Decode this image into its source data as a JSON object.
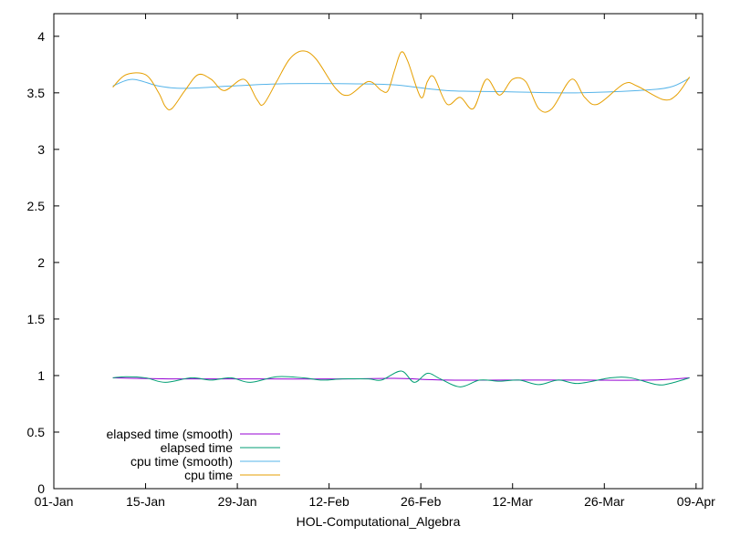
{
  "chart_data": {
    "type": "line",
    "title": "",
    "xlabel": "HOL-Computational_Algebra",
    "ylabel": "",
    "x_ticks": [
      "01-Jan",
      "15-Jan",
      "29-Jan",
      "12-Feb",
      "26-Feb",
      "12-Mar",
      "26-Mar",
      "09-Apr"
    ],
    "y_ticks": [
      "0",
      "0.5",
      "1",
      "1.5",
      "2",
      "2.5",
      "3",
      "3.5",
      "4"
    ],
    "xlim": [
      "2024-01-01",
      "2024-04-09"
    ],
    "ylim": [
      0,
      4.2
    ],
    "grid": false,
    "legend_position": "bottom-left",
    "series": [
      {
        "name": "elapsed time (smooth)",
        "color": "#9400d3",
        "points": [
          [
            "2024-01-10",
            0.98
          ],
          [
            "2024-01-20",
            0.97
          ],
          [
            "2024-02-01",
            0.97
          ],
          [
            "2024-02-15",
            0.97
          ],
          [
            "2024-02-22",
            0.975
          ],
          [
            "2024-03-01",
            0.96
          ],
          [
            "2024-03-10",
            0.96
          ],
          [
            "2024-03-20",
            0.96
          ],
          [
            "2024-04-01",
            0.96
          ],
          [
            "2024-04-07",
            0.98
          ]
        ]
      },
      {
        "name": "elapsed time",
        "color": "#009e73",
        "points": [
          [
            "2024-01-10",
            0.98
          ],
          [
            "2024-01-12",
            0.99
          ],
          [
            "2024-01-15",
            0.98
          ],
          [
            "2024-01-18",
            0.94
          ],
          [
            "2024-01-22",
            0.98
          ],
          [
            "2024-01-25",
            0.96
          ],
          [
            "2024-01-28",
            0.98
          ],
          [
            "2024-01-31",
            0.94
          ],
          [
            "2024-02-04",
            0.99
          ],
          [
            "2024-02-08",
            0.98
          ],
          [
            "2024-02-11",
            0.96
          ],
          [
            "2024-02-14",
            0.97
          ],
          [
            "2024-02-18",
            0.97
          ],
          [
            "2024-02-20",
            0.96
          ],
          [
            "2024-02-23",
            1.04
          ],
          [
            "2024-02-25",
            0.94
          ],
          [
            "2024-02-27",
            1.02
          ],
          [
            "2024-02-29",
            0.97
          ],
          [
            "2024-03-03",
            0.9
          ],
          [
            "2024-03-06",
            0.96
          ],
          [
            "2024-03-09",
            0.95
          ],
          [
            "2024-03-12",
            0.96
          ],
          [
            "2024-03-15",
            0.92
          ],
          [
            "2024-03-18",
            0.96
          ],
          [
            "2024-03-21",
            0.93
          ],
          [
            "2024-03-26",
            0.98
          ],
          [
            "2024-03-29",
            0.98
          ],
          [
            "2024-04-02",
            0.92
          ],
          [
            "2024-04-04",
            0.93
          ],
          [
            "2024-04-07",
            0.98
          ]
        ]
      },
      {
        "name": "cpu time (smooth)",
        "color": "#56b4e9",
        "points": [
          [
            "2024-01-10",
            3.56
          ],
          [
            "2024-01-13",
            3.62
          ],
          [
            "2024-01-17",
            3.56
          ],
          [
            "2024-01-21",
            3.54
          ],
          [
            "2024-01-28",
            3.56
          ],
          [
            "2024-02-05",
            3.58
          ],
          [
            "2024-02-15",
            3.58
          ],
          [
            "2024-02-22",
            3.57
          ],
          [
            "2024-03-01",
            3.52
          ],
          [
            "2024-03-10",
            3.51
          ],
          [
            "2024-03-20",
            3.5
          ],
          [
            "2024-03-30",
            3.52
          ],
          [
            "2024-04-04",
            3.55
          ],
          [
            "2024-04-07",
            3.63
          ]
        ]
      },
      {
        "name": "cpu time",
        "color": "#e69f00",
        "points": [
          [
            "2024-01-10",
            3.55
          ],
          [
            "2024-01-12",
            3.66
          ],
          [
            "2024-01-15",
            3.66
          ],
          [
            "2024-01-17",
            3.5
          ],
          [
            "2024-01-18",
            3.38
          ],
          [
            "2024-01-19",
            3.36
          ],
          [
            "2024-01-21",
            3.52
          ],
          [
            "2024-01-23",
            3.66
          ],
          [
            "2024-01-25",
            3.62
          ],
          [
            "2024-01-27",
            3.52
          ],
          [
            "2024-01-30",
            3.62
          ],
          [
            "2024-02-01",
            3.44
          ],
          [
            "2024-02-02",
            3.4
          ],
          [
            "2024-02-04",
            3.6
          ],
          [
            "2024-02-06",
            3.8
          ],
          [
            "2024-02-08",
            3.87
          ],
          [
            "2024-02-10",
            3.8
          ],
          [
            "2024-02-13",
            3.54
          ],
          [
            "2024-02-15",
            3.48
          ],
          [
            "2024-02-18",
            3.6
          ],
          [
            "2024-02-20",
            3.52
          ],
          [
            "2024-02-21",
            3.52
          ],
          [
            "2024-02-22",
            3.7
          ],
          [
            "2024-02-23",
            3.86
          ],
          [
            "2024-02-24",
            3.78
          ],
          [
            "2024-02-26",
            3.46
          ],
          [
            "2024-02-27",
            3.6
          ],
          [
            "2024-02-28",
            3.64
          ],
          [
            "2024-03-01",
            3.4
          ],
          [
            "2024-03-03",
            3.46
          ],
          [
            "2024-03-05",
            3.36
          ],
          [
            "2024-03-07",
            3.62
          ],
          [
            "2024-03-09",
            3.48
          ],
          [
            "2024-03-11",
            3.62
          ],
          [
            "2024-03-13",
            3.6
          ],
          [
            "2024-03-15",
            3.36
          ],
          [
            "2024-03-17",
            3.36
          ],
          [
            "2024-03-20",
            3.62
          ],
          [
            "2024-03-22",
            3.46
          ],
          [
            "2024-03-24",
            3.4
          ],
          [
            "2024-03-28",
            3.58
          ],
          [
            "2024-03-30",
            3.56
          ],
          [
            "2024-04-03",
            3.44
          ],
          [
            "2024-04-05",
            3.48
          ],
          [
            "2024-04-07",
            3.64
          ]
        ]
      }
    ]
  }
}
